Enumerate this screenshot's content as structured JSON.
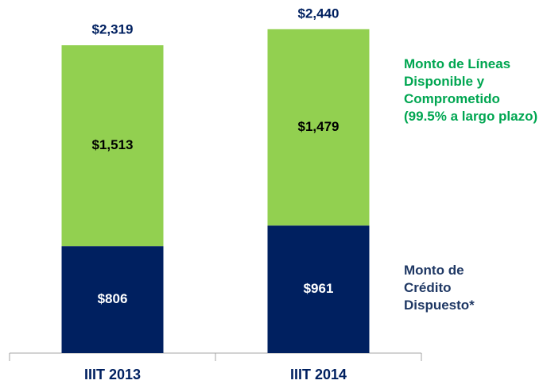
{
  "chart_data": {
    "type": "stacked_bar",
    "fragment": "na",
    "categories": [
      "IIIT 2013",
      "IIIT 2014"
    ],
    "series": [
      {
        "name": "Monto de Crédito Dispuesto*",
        "color": "#002060",
        "label_color": "#ffffff",
        "legend_color": "#1f3864",
        "values": [
          806,
          961
        ],
        "value_labels": [
          "$806",
          "$961"
        ]
      },
      {
        "name": "Monto de Líneas Disponible y Comprometido (99.5% a largo plazo)",
        "color": "#92d050",
        "label_color": "#000000",
        "legend_color": "#00a651",
        "values": [
          1513,
          1479
        ],
        "value_labels": [
          "$1,513",
          "$1,479"
        ]
      }
    ],
    "totals": [
      2319,
      2440
    ],
    "total_labels": [
      "$2,319",
      "$2,440"
    ],
    "ylim": [
      0,
      2660
    ]
  }
}
